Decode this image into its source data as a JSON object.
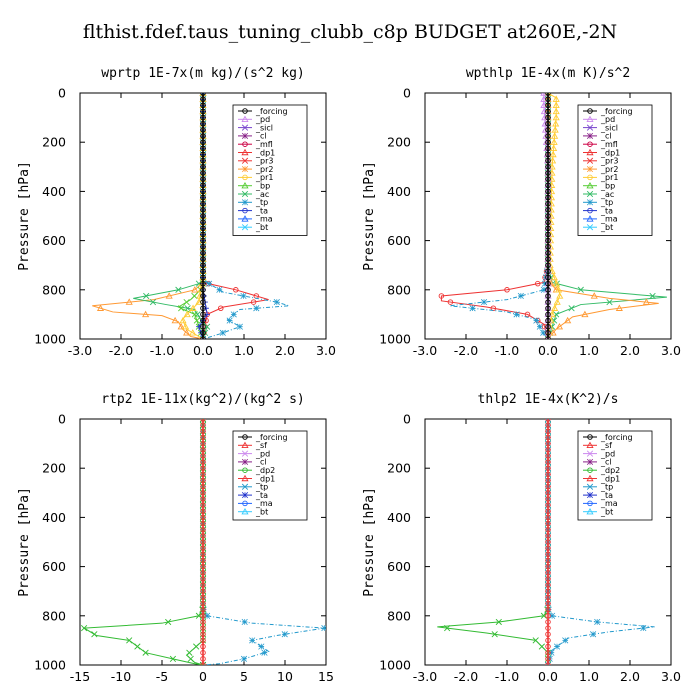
{
  "title": "flthist.fdef.taus_tuning_clubb_c8p  BUDGET at260E,-2N",
  "colors": {
    "_forcing": "#000000",
    "_pd": "#cc88ee",
    "_sicl": "#7744cc",
    "_cl": "#882288",
    "_mfl": "#cc0044",
    "_dp1": "#ee3333",
    "_pr3": "#ee3333",
    "_pr2": "#ff9933",
    "_pr1": "#ffcc33",
    "_bp": "#55cc33",
    "_ac": "#33bb66",
    "_tp": "#2299cc",
    "_ta": "#2233cc",
    "_ma": "#2266ff",
    "_bt": "#33ccff",
    "_sf": "#ee3333",
    "_dp2": "#33bb33"
  },
  "chart_data": [
    {
      "type": "line",
      "title": "wprtp  1E-7x(m kg)/(s^2 kg)",
      "ylabel": "Pressure [hPa]",
      "xlim": [
        -3.0,
        3.0
      ],
      "ylim": [
        1000,
        0
      ],
      "xticks": [
        "-3.0",
        "-2.0",
        "-1.0",
        "0.0",
        "1.0",
        "2.0",
        "3.0"
      ],
      "yticks": [
        "0",
        "200",
        "400",
        "600",
        "800",
        "1000"
      ],
      "legend": "top-right",
      "legend_entries": [
        "_forcing",
        "_pd",
        "_sicl",
        "_cl",
        "_mfl",
        "_dp1",
        "_pr3",
        "_pr2",
        "_pr1",
        "_bp",
        "_ac",
        "_tp",
        "_ta",
        "_ma",
        "_bt"
      ],
      "series": [
        {
          "name": "_pr2",
          "color": "#ff9933",
          "marker": "tri",
          "dash": "",
          "points": [
            [
              0,
              0
            ],
            [
              0,
              700
            ],
            [
              0,
              770
            ],
            [
              -0.2,
              800
            ],
            [
              -1.2,
              840
            ],
            [
              -2.7,
              865
            ],
            [
              -2.2,
              890
            ],
            [
              -1.0,
              905
            ],
            [
              -0.6,
              930
            ],
            [
              -0.5,
              960
            ],
            [
              -0.3,
              990
            ],
            [
              0,
              1000
            ]
          ]
        },
        {
          "name": "_dp1",
          "color": "#ee3333",
          "marker": "circle",
          "dash": "",
          "points": [
            [
              0,
              0
            ],
            [
              0,
              700
            ],
            [
              0,
              770
            ],
            [
              0.8,
              800
            ],
            [
              1.6,
              840
            ],
            [
              0.5,
              870
            ],
            [
              0.1,
              900
            ],
            [
              0,
              1000
            ]
          ]
        },
        {
          "name": "_ac",
          "color": "#33bb66",
          "marker": "x",
          "dash": "",
          "points": [
            [
              0,
              0
            ],
            [
              0,
              700
            ],
            [
              0,
              770
            ],
            [
              -0.6,
              800
            ],
            [
              -1.7,
              835
            ],
            [
              -0.9,
              860
            ],
            [
              -0.2,
              880
            ],
            [
              -0.1,
              910
            ],
            [
              0.1,
              950
            ],
            [
              0,
              1000
            ]
          ]
        },
        {
          "name": "_bp",
          "color": "#55cc33",
          "marker": "x",
          "dash": "",
          "points": [
            [
              0,
              0
            ],
            [
              0,
              700
            ],
            [
              0,
              790
            ],
            [
              -0.3,
              840
            ],
            [
              -0.6,
              870
            ],
            [
              -0.2,
              900
            ],
            [
              0,
              1000
            ]
          ]
        },
        {
          "name": "_tp",
          "color": "#2299cc",
          "marker": "star",
          "dash": "4,2,1,2",
          "points": [
            [
              0,
              0
            ],
            [
              0,
              700
            ],
            [
              0,
              760
            ],
            [
              0.5,
              810
            ],
            [
              1.8,
              850
            ],
            [
              2.1,
              865
            ],
            [
              0.9,
              880
            ],
            [
              0.6,
              920
            ],
            [
              0.9,
              950
            ],
            [
              0.4,
              980
            ],
            [
              0,
              1000
            ]
          ]
        },
        {
          "name": "_pr1",
          "color": "#ffcc33",
          "marker": "tri",
          "dash": "",
          "points": [
            [
              0,
              0
            ],
            [
              0,
              750
            ],
            [
              -0.1,
              850
            ],
            [
              -0.5,
              920
            ],
            [
              -0.4,
              960
            ],
            [
              0,
              1000
            ]
          ]
        },
        {
          "name": "_ta",
          "color": "#2233cc",
          "marker": "plus",
          "dash": "",
          "points": [
            [
              0,
              0
            ],
            [
              0,
              800
            ],
            [
              0.1,
              900
            ],
            [
              -0.1,
              950
            ],
            [
              0,
              1000
            ]
          ]
        },
        {
          "name": "_forcing",
          "color": "#000000",
          "marker": "circle",
          "dash": "",
          "points": [
            [
              0,
              0
            ],
            [
              0,
              1000
            ]
          ]
        }
      ]
    },
    {
      "type": "line",
      "title": "wpthlp  1E-4x(m K)/s^2",
      "ylabel": "Pressure [hPa]",
      "xlim": [
        -3.0,
        3.0
      ],
      "ylim": [
        1000,
        0
      ],
      "xticks": [
        "-3.0",
        "-2.0",
        "-1.0",
        "0.0",
        "1.0",
        "2.0",
        "3.0"
      ],
      "yticks": [
        "0",
        "200",
        "400",
        "600",
        "800",
        "1000"
      ],
      "legend": "top-right",
      "legend_entries": [
        "_forcing",
        "_pd",
        "_sicl",
        "_cl",
        "_mfl",
        "_dp1",
        "_pr3",
        "_pr2",
        "_pr1",
        "_bp",
        "_ac",
        "_tp",
        "_ta",
        "_ma",
        "_bt"
      ],
      "series": [
        {
          "name": "_dp1",
          "color": "#ee3333",
          "marker": "circle",
          "dash": "",
          "points": [
            [
              0,
              0
            ],
            [
              0,
              700
            ],
            [
              -0.1,
              770
            ],
            [
              -1.0,
              800
            ],
            [
              -2.6,
              825
            ],
            [
              -2.6,
              845
            ],
            [
              -1.5,
              870
            ],
            [
              -0.5,
              900
            ],
            [
              -0.1,
              940
            ],
            [
              0,
              1000
            ]
          ]
        },
        {
          "name": "_tp",
          "color": "#2299cc",
          "marker": "star",
          "dash": "4,2,1,2",
          "points": [
            [
              0,
              0
            ],
            [
              0,
              700
            ],
            [
              -0.1,
              800
            ],
            [
              -1.0,
              840
            ],
            [
              -2.4,
              865
            ],
            [
              -1.0,
              890
            ],
            [
              -0.3,
              920
            ],
            [
              -0.1,
              980
            ],
            [
              0,
              1000
            ]
          ]
        },
        {
          "name": "_ac",
          "color": "#33bb66",
          "marker": "x",
          "dash": "",
          "points": [
            [
              0,
              0
            ],
            [
              0,
              700
            ],
            [
              0.1,
              770
            ],
            [
              0.8,
              800
            ],
            [
              2.9,
              830
            ],
            [
              0.8,
              860
            ],
            [
              0.2,
              900
            ],
            [
              0,
              1000
            ]
          ]
        },
        {
          "name": "_pr2",
          "color": "#ff9933",
          "marker": "tri",
          "dash": "",
          "points": [
            [
              0,
              0
            ],
            [
              0,
              760
            ],
            [
              0.2,
              800
            ],
            [
              1.5,
              835
            ],
            [
              2.7,
              855
            ],
            [
              1.5,
              880
            ],
            [
              0.6,
              910
            ],
            [
              0.2,
              960
            ],
            [
              0,
              1000
            ]
          ]
        },
        {
          "name": "_pr1",
          "color": "#ffcc33",
          "marker": "tri",
          "dash": "",
          "points": [
            [
              0,
              0
            ],
            [
              0.2,
              20
            ],
            [
              0.2,
              100
            ],
            [
              0.1,
              300
            ],
            [
              0.05,
              700
            ],
            [
              0.3,
              820
            ],
            [
              0.1,
              900
            ],
            [
              0,
              1000
            ]
          ]
        },
        {
          "name": "_pd",
          "color": "#cc88ee",
          "marker": "tri",
          "dash": "",
          "points": [
            [
              -0.1,
              0
            ],
            [
              -0.1,
              50
            ],
            [
              0,
              300
            ],
            [
              0,
              1000
            ]
          ]
        },
        {
          "name": "_forcing",
          "color": "#000000",
          "marker": "circle",
          "dash": "",
          "points": [
            [
              0,
              0
            ],
            [
              0,
              1000
            ]
          ]
        }
      ]
    },
    {
      "type": "line",
      "title": "rtp2  1E-11x(kg^2)/(kg^2 s)",
      "ylabel": "Pressure [hPa]",
      "xlim": [
        -15,
        15
      ],
      "ylim": [
        1000,
        0
      ],
      "xticks": [
        "-15",
        "-10",
        "-5",
        "0",
        "5",
        "10",
        "15"
      ],
      "yticks": [
        "0",
        "200",
        "400",
        "600",
        "800",
        "1000"
      ],
      "legend": "top-right",
      "legend_entries": [
        "_forcing",
        "_sf",
        "_pd",
        "_cl",
        "_dp2",
        "_dp1",
        "_tp",
        "_ta",
        "_ma",
        "_bt"
      ],
      "series": [
        {
          "name": "_dp2",
          "color": "#33bb33",
          "marker": "x",
          "dash": "",
          "points": [
            [
              0,
              0
            ],
            [
              0,
              700
            ],
            [
              0,
              770
            ],
            [
              -0.5,
              800
            ],
            [
              -5,
              830
            ],
            [
              -14.5,
              850
            ],
            [
              -13,
              880
            ],
            [
              -9,
              900
            ],
            [
              -7,
              950
            ],
            [
              -3,
              980
            ],
            [
              -1,
              995
            ],
            [
              0,
              1000
            ]
          ]
        },
        {
          "name": "_tp",
          "color": "#2299cc",
          "marker": "star",
          "dash": "4,2,1,2",
          "points": [
            [
              0,
              0
            ],
            [
              0,
              700
            ],
            [
              0,
              770
            ],
            [
              0.5,
              800
            ],
            [
              6,
              830
            ],
            [
              14.8,
              850
            ],
            [
              9,
              880
            ],
            [
              6,
              900
            ],
            [
              8,
              945
            ],
            [
              5,
              975
            ],
            [
              2,
              995
            ],
            [
              0,
              1000
            ]
          ]
        },
        {
          "name": "_dp1",
          "color": "#33bb33",
          "marker": "x",
          "dash": "",
          "points": [
            [
              0,
              0
            ],
            [
              0,
              900
            ],
            [
              -2,
              960
            ],
            [
              -1,
              990
            ],
            [
              0,
              1000
            ]
          ]
        },
        {
          "name": "_forcing",
          "color": "#ee3333",
          "marker": "circle",
          "dash": "",
          "points": [
            [
              0,
              0
            ],
            [
              0,
              1000
            ]
          ]
        }
      ]
    },
    {
      "type": "line",
      "title": "thlp2  1E-4x(K^2)/s",
      "ylabel": "Pressure [hPa]",
      "xlim": [
        -3.0,
        3.0
      ],
      "ylim": [
        1000,
        0
      ],
      "xticks": [
        "-3.0",
        "-2.0",
        "-1.0",
        "0.0",
        "1.0",
        "2.0",
        "3.0"
      ],
      "yticks": [
        "0",
        "200",
        "400",
        "600",
        "800",
        "1000"
      ],
      "legend": "top-right",
      "legend_entries": [
        "_forcing",
        "_sf",
        "_pd",
        "_cl",
        "_dp2",
        "_dp1",
        "_tp",
        "_ta",
        "_ma",
        "_bt"
      ],
      "series": [
        {
          "name": "_dp2",
          "color": "#33bb33",
          "marker": "x",
          "dash": "",
          "points": [
            [
              0,
              0
            ],
            [
              0,
              700
            ],
            [
              0,
              770
            ],
            [
              -0.1,
              800
            ],
            [
              -1.2,
              825
            ],
            [
              -2.7,
              845
            ],
            [
              -1.5,
              870
            ],
            [
              -0.3,
              900
            ],
            [
              0,
              950
            ],
            [
              0,
              1000
            ]
          ]
        },
        {
          "name": "_tp",
          "color": "#2299cc",
          "marker": "star",
          "dash": "4,2,1,2",
          "points": [
            [
              0,
              0
            ],
            [
              0,
              700
            ],
            [
              0,
              770
            ],
            [
              0.1,
              800
            ],
            [
              1.2,
              825
            ],
            [
              2.6,
              845
            ],
            [
              1.5,
              865
            ],
            [
              0.5,
              890
            ],
            [
              0.1,
              940
            ],
            [
              0,
              1000
            ]
          ]
        },
        {
          "name": "_forcing",
          "color": "#ee3333",
          "marker": "circle",
          "dash": "",
          "points": [
            [
              0,
              0
            ],
            [
              0,
              1000
            ]
          ]
        }
      ]
    }
  ]
}
